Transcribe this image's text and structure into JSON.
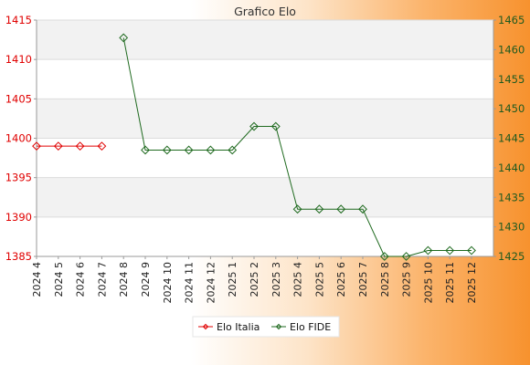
{
  "chart_data": {
    "type": "line",
    "title": "Grafico Elo",
    "categories": [
      "2024 4",
      "2024 5",
      "2024 6",
      "2024 7",
      "2024 8",
      "2024 9",
      "2024 10",
      "2024 11",
      "2024 12",
      "2025 1",
      "2025 2",
      "2025 3",
      "2025 4",
      "2025 5",
      "2025 6",
      "2025 7",
      "2025 8",
      "2025 9",
      "2025 10",
      "2025 11",
      "2025 12"
    ],
    "left_axis": {
      "ylim": [
        1385,
        1415
      ],
      "ticks": [
        1385,
        1390,
        1395,
        1400,
        1405,
        1410,
        1415
      ],
      "color": "#e00000"
    },
    "right_axis": {
      "ylim": [
        1425,
        1465
      ],
      "ticks": [
        1425,
        1430,
        1435,
        1440,
        1445,
        1450,
        1455,
        1460,
        1465
      ],
      "color": "#1f5a1f"
    },
    "series": [
      {
        "name": "Elo Italia",
        "axis": "left",
        "color": "#e00000",
        "values": [
          1399,
          1399,
          1399,
          1399,
          null,
          null,
          null,
          null,
          null,
          null,
          null,
          null,
          null,
          null,
          null,
          null,
          null,
          null,
          null,
          null,
          null
        ]
      },
      {
        "name": "Elo FIDE",
        "axis": "right",
        "color": "#1f6a1f",
        "values": [
          null,
          null,
          null,
          null,
          1462,
          1443,
          1443,
          1443,
          1443,
          1443,
          1447,
          1447,
          1433,
          1433,
          1433,
          1433,
          1425,
          1425,
          1426,
          1426,
          1426
        ]
      }
    ],
    "grid": true,
    "legend_position": "bottom-center"
  }
}
